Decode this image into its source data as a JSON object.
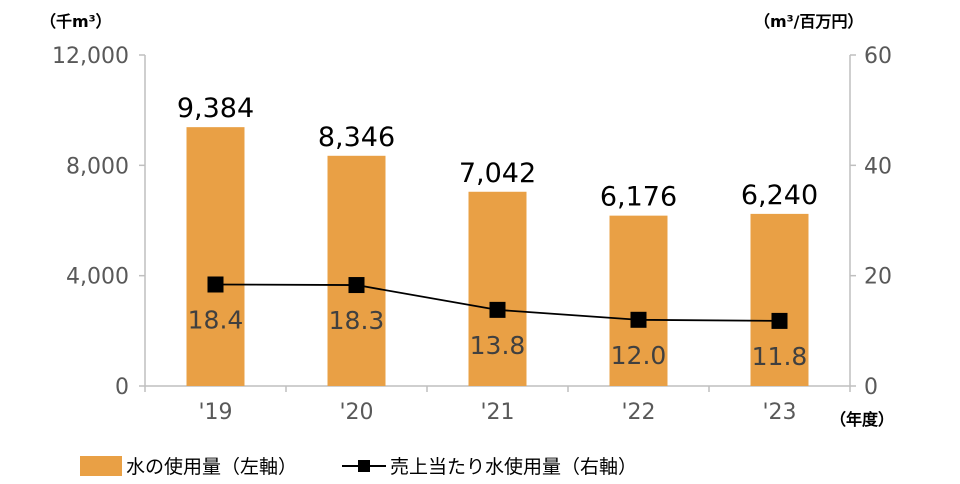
{
  "chart_data": {
    "type": "bar",
    "categories": [
      "'19",
      "'20",
      "'21",
      "'22",
      "'23"
    ],
    "series": [
      {
        "name": "水の使用量（左軸）",
        "kind": "bar",
        "axis": "left",
        "color": "#E9A045",
        "values": [
          9384,
          8346,
          7042,
          6176,
          6240
        ],
        "labels": [
          "9,384",
          "8,346",
          "7,042",
          "6,176",
          "6,240"
        ]
      },
      {
        "name": "売上当たり水使用量（右軸）",
        "kind": "line",
        "axis": "right",
        "color": "#000000",
        "values": [
          18.4,
          18.3,
          13.8,
          12.0,
          11.8
        ],
        "labels": [
          "18.4",
          "18.3",
          "13.8",
          "12.0",
          "11.8"
        ]
      }
    ],
    "left_axis": {
      "unit": "（千m³）",
      "ylim": [
        0,
        12000
      ],
      "ticks": [
        0,
        4000,
        8000,
        12000
      ],
      "tick_labels": [
        "0",
        "4,000",
        "8,000",
        "12,000"
      ]
    },
    "right_axis": {
      "unit": "（m³/百万円）",
      "ylim": [
        0,
        60
      ],
      "ticks": [
        0,
        20,
        40,
        60
      ],
      "tick_labels": [
        "0",
        "20",
        "40",
        "60"
      ]
    },
    "x_unit": "（年度）",
    "grid": false,
    "legend_position": "bottom-left"
  }
}
